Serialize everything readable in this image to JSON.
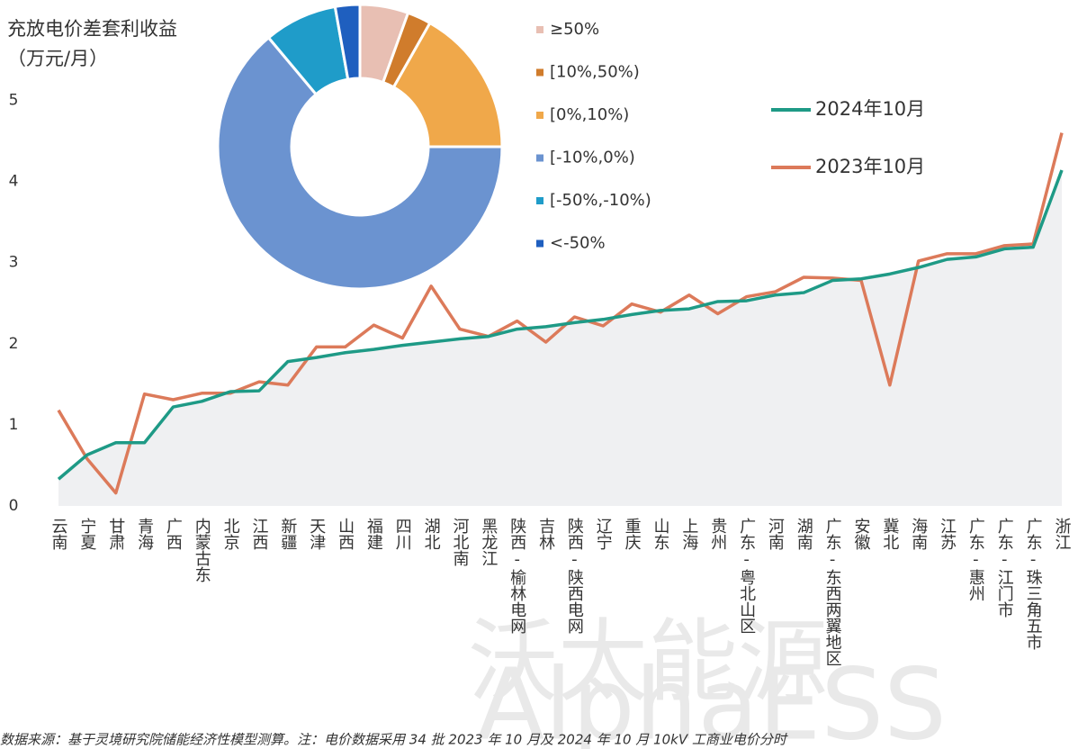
{
  "chart_data": [
    {
      "type": "line",
      "title": "充放电价差套利收益",
      "subtitle": "（万元/月）",
      "categories": [
        "云南",
        "宁夏",
        "甘肃",
        "青海",
        "广西",
        "内蒙古东",
        "北京",
        "江西",
        "新疆",
        "天津",
        "山西",
        "福建",
        "四川",
        "湖北",
        "河北南",
        "黑龙江",
        "陕西-榆林电网",
        "吉林",
        "陕西-陕西电网",
        "辽宁",
        "重庆",
        "山东",
        "上海",
        "贵州",
        "广东-粤北山区",
        "河南",
        "湖南",
        "广东-东西两翼地区",
        "安徽",
        "冀北",
        "海南",
        "江苏",
        "广东-惠州",
        "广东-江门市",
        "广东-珠三角五市",
        "浙江"
      ],
      "series": [
        {
          "name": "2024年10月",
          "color": "#1e9a86",
          "values": [
            0.33,
            0.63,
            0.78,
            0.78,
            1.22,
            1.29,
            1.41,
            1.42,
            1.78,
            1.83,
            1.89,
            1.93,
            1.98,
            2.02,
            2.06,
            2.09,
            2.18,
            2.21,
            2.26,
            2.3,
            2.36,
            2.41,
            2.43,
            2.52,
            2.53,
            2.6,
            2.63,
            2.78,
            2.8,
            2.86,
            2.94,
            3.04,
            3.07,
            3.17,
            3.19,
            4.14
          ]
        },
        {
          "name": "2023年10月",
          "color": "#dc7a5a",
          "values": [
            1.18,
            0.58,
            0.16,
            1.38,
            1.31,
            1.39,
            1.39,
            1.53,
            1.49,
            1.96,
            1.96,
            2.23,
            2.07,
            2.71,
            2.18,
            2.09,
            2.28,
            2.02,
            2.33,
            2.22,
            2.49,
            2.39,
            2.6,
            2.37,
            2.58,
            2.64,
            2.82,
            2.81,
            2.78,
            1.49,
            3.02,
            3.11,
            3.11,
            3.21,
            3.23,
            4.6
          ]
        }
      ],
      "ylim": [
        0,
        5.55
      ],
      "yticks": [
        0,
        1,
        2,
        3,
        4,
        5
      ],
      "area_color": "#eff0f2",
      "annotations": [
        "数据来源：基于灵境研究院储能经济性模型测算。注：电价数据采用 34 批 2023 年 10 月及 2024 年 10 月 10kV 工商业电价分时",
        "沃太能源",
        "AlphaESS"
      ]
    },
    {
      "type": "pie",
      "categories": [
        "≥50%",
        "[10%,50%)",
        "[0%,10%)",
        "[-10%,0%)",
        "[-50%,-10%)",
        "<-50%"
      ],
      "values": [
        5.5,
        2.7,
        16.8,
        63.9,
        8.3,
        2.8
      ],
      "colors": [
        "#e8bfb3",
        "#d07c2c",
        "#f0a84a",
        "#6b93d0",
        "#1f9cc9",
        "#1f5fbf"
      ]
    }
  ]
}
